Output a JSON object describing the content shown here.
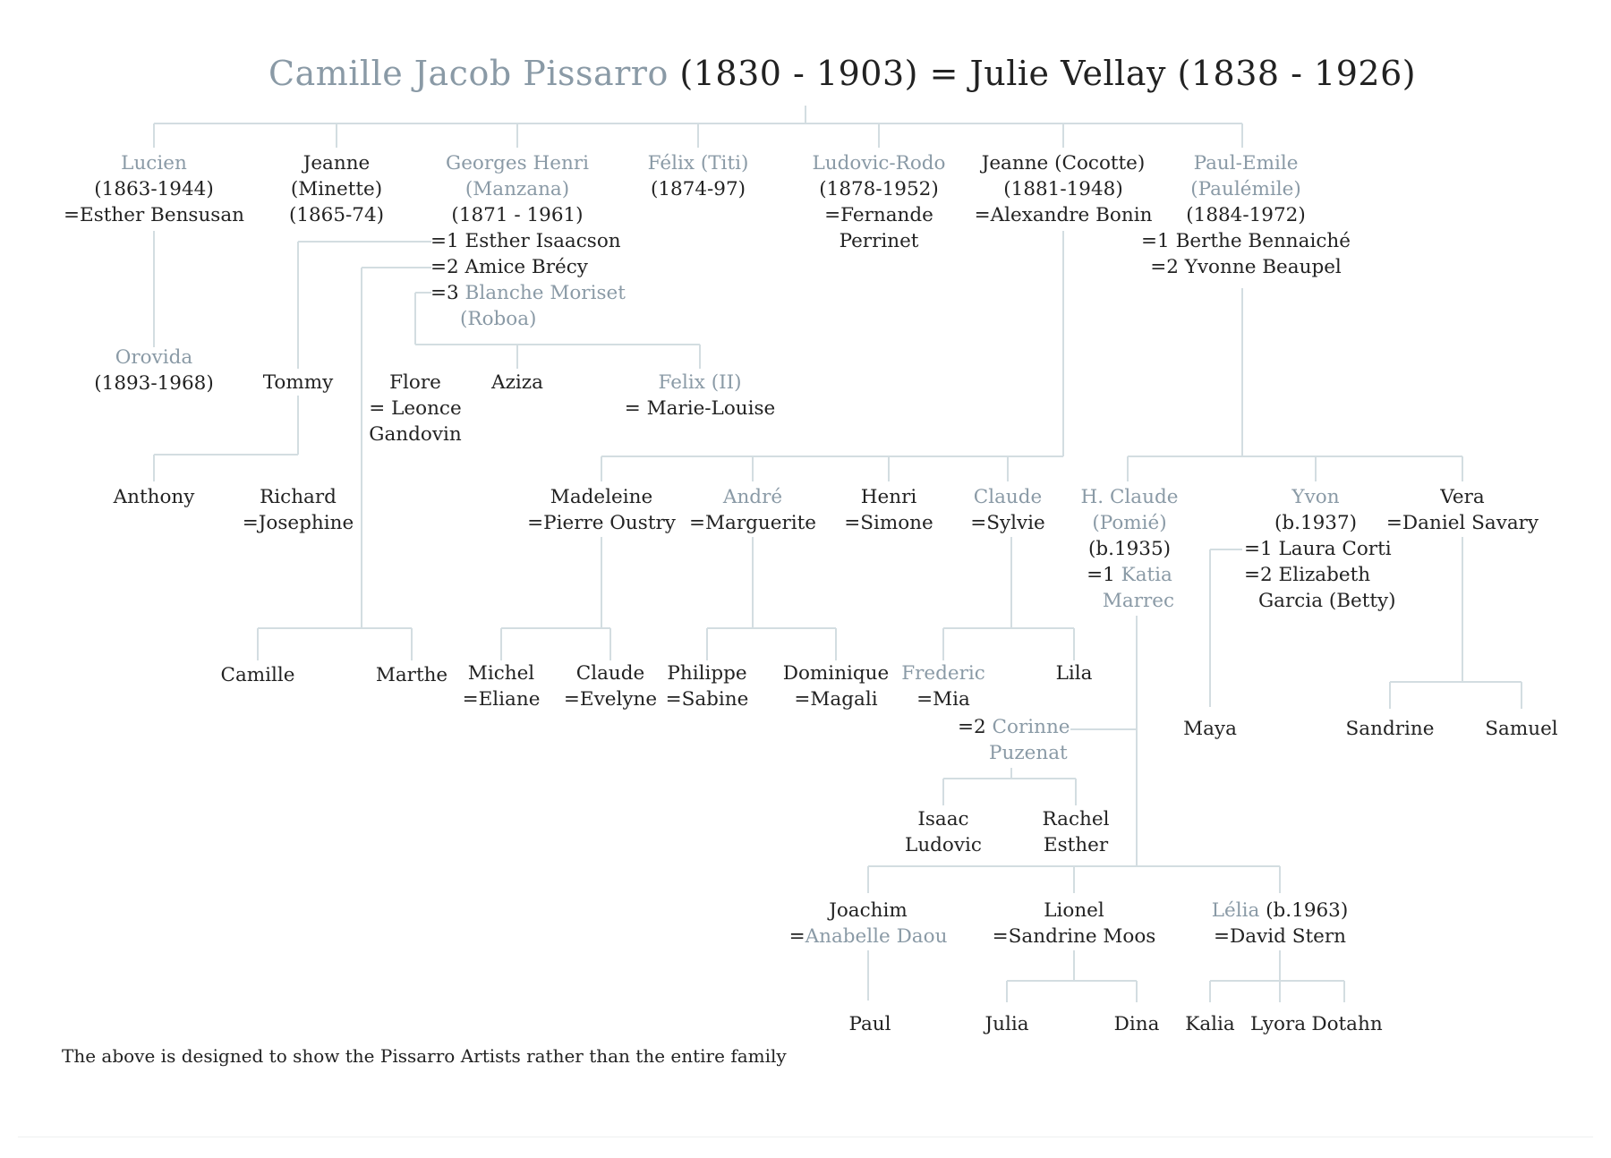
{
  "title": {
    "artist_name": "Camille Jacob Pissarro",
    "rest": " (1830 - 1903) = Julie Vellay (1838 - 1926)"
  },
  "people": {
    "lucien": {
      "name": "Lucien",
      "dates": "(1863-1944)",
      "spouse": "=Esther Bensusan"
    },
    "jeanne_minette": {
      "name": "Jeanne",
      "alias": "(Minette)",
      "dates": "(1865-74)"
    },
    "georges": {
      "name": "Georges Henri",
      "alias": "(Manzana)",
      "dates": "(1871 - 1961)",
      "spouse1": "=1 Esther Isaacson",
      "spouse2": "=2 Amice Brécy",
      "spouse3_prefix": "=3",
      "spouse3": "Blanche Moriset",
      "spouse3_alias": "(Roboa)"
    },
    "felix_titi": {
      "name": "Félix (Titi)",
      "dates": "(1874-97)"
    },
    "ludovic": {
      "name": "Ludovic-Rodo",
      "dates": "(1878-1952)",
      "spouse_a": "=Fernande",
      "spouse_b": "Perrinet"
    },
    "jeanne_cocotte": {
      "name": "Jeanne (Cocotte)",
      "dates": "(1881-1948)",
      "spouse": "=Alexandre Bonin"
    },
    "paul_emile": {
      "name": "Paul-Emile",
      "alias": "(Paulémile)",
      "dates": "(1884-1972)",
      "spouse1": "=1 Berthe Bennaiché",
      "spouse2": "=2 Yvonne Beaupel"
    },
    "orovida": {
      "name": "Orovida",
      "dates": "(1893-1968)"
    },
    "tommy": {
      "name": "Tommy"
    },
    "flore": {
      "name": "Flore",
      "spouse_a": "= Leonce",
      "spouse_b": "Gandovin"
    },
    "aziza": {
      "name": "Aziza"
    },
    "felix_ii": {
      "name": "Felix (II)",
      "spouse": "= Marie-Louise"
    },
    "anthony": {
      "name": "Anthony"
    },
    "richard": {
      "name": "Richard",
      "spouse": "=Josephine"
    },
    "madeleine": {
      "name": "Madeleine",
      "spouse": "=Pierre Oustry"
    },
    "andre": {
      "name": "André",
      "spouse": "=Marguerite"
    },
    "henri": {
      "name": "Henri",
      "spouse": "=Simone"
    },
    "claude_sylvie": {
      "name": "Claude",
      "spouse": "=Sylvie"
    },
    "h_claude": {
      "name": "H. Claude",
      "alias": "(Pomié)",
      "dates": "(b.1935)",
      "spouse1_prefix": "=1",
      "spouse1_a": "Katia",
      "spouse1_b": "Marrec",
      "spouse2_prefix": "=2",
      "spouse2_a": "Corinne",
      "spouse2_b": "Puzenat"
    },
    "yvon": {
      "name": "Yvon",
      "dates": "(b.1937)",
      "spouse1": "=1 Laura Corti",
      "spouse2": "=2 Elizabeth",
      "spouse2_b": "Garcia (Betty)"
    },
    "vera": {
      "name": "Vera",
      "spouse": "=Daniel Savary"
    },
    "camille": {
      "name": "Camille"
    },
    "marthe": {
      "name": "Marthe"
    },
    "michel": {
      "name": "Michel",
      "spouse": "=Eliane"
    },
    "claude_evelyne": {
      "name": "Claude",
      "spouse": "=Evelyne"
    },
    "philippe": {
      "name": "Philippe",
      "spouse": "=Sabine"
    },
    "dominique": {
      "name": "Dominique",
      "spouse": "=Magali"
    },
    "frederic": {
      "name": "Frederic",
      "spouse": "=Mia"
    },
    "lila": {
      "name": "Lila"
    },
    "maya": {
      "name": "Maya"
    },
    "sandrine": {
      "name": "Sandrine"
    },
    "samuel": {
      "name": "Samuel"
    },
    "isaac": {
      "name_a": "Isaac",
      "name_b": "Ludovic"
    },
    "rachel": {
      "name_a": "Rachel",
      "name_b": "Esther"
    },
    "joachim": {
      "name": "Joachim",
      "spouse_prefix": "=",
      "spouse": "Anabelle Daou"
    },
    "lionel": {
      "name": "Lionel",
      "spouse": "=Sandrine Moos"
    },
    "lelia": {
      "name": "Lélia",
      "dates": " (b.1963)",
      "spouse": "=David Stern"
    },
    "paul": {
      "name": "Paul"
    },
    "julia": {
      "name": "Julia"
    },
    "dina": {
      "name": "Dina"
    },
    "kalia": {
      "name": "Kalia"
    },
    "lyora": {
      "name": "Lyora"
    },
    "dotahn": {
      "name": "Dotahn"
    }
  },
  "footnote": "The above is designed to show the Pissarro Artists rather than the entire family",
  "colors": {
    "artist": "#8a9aa6",
    "line": "#d3dde1",
    "text": "#222222"
  }
}
